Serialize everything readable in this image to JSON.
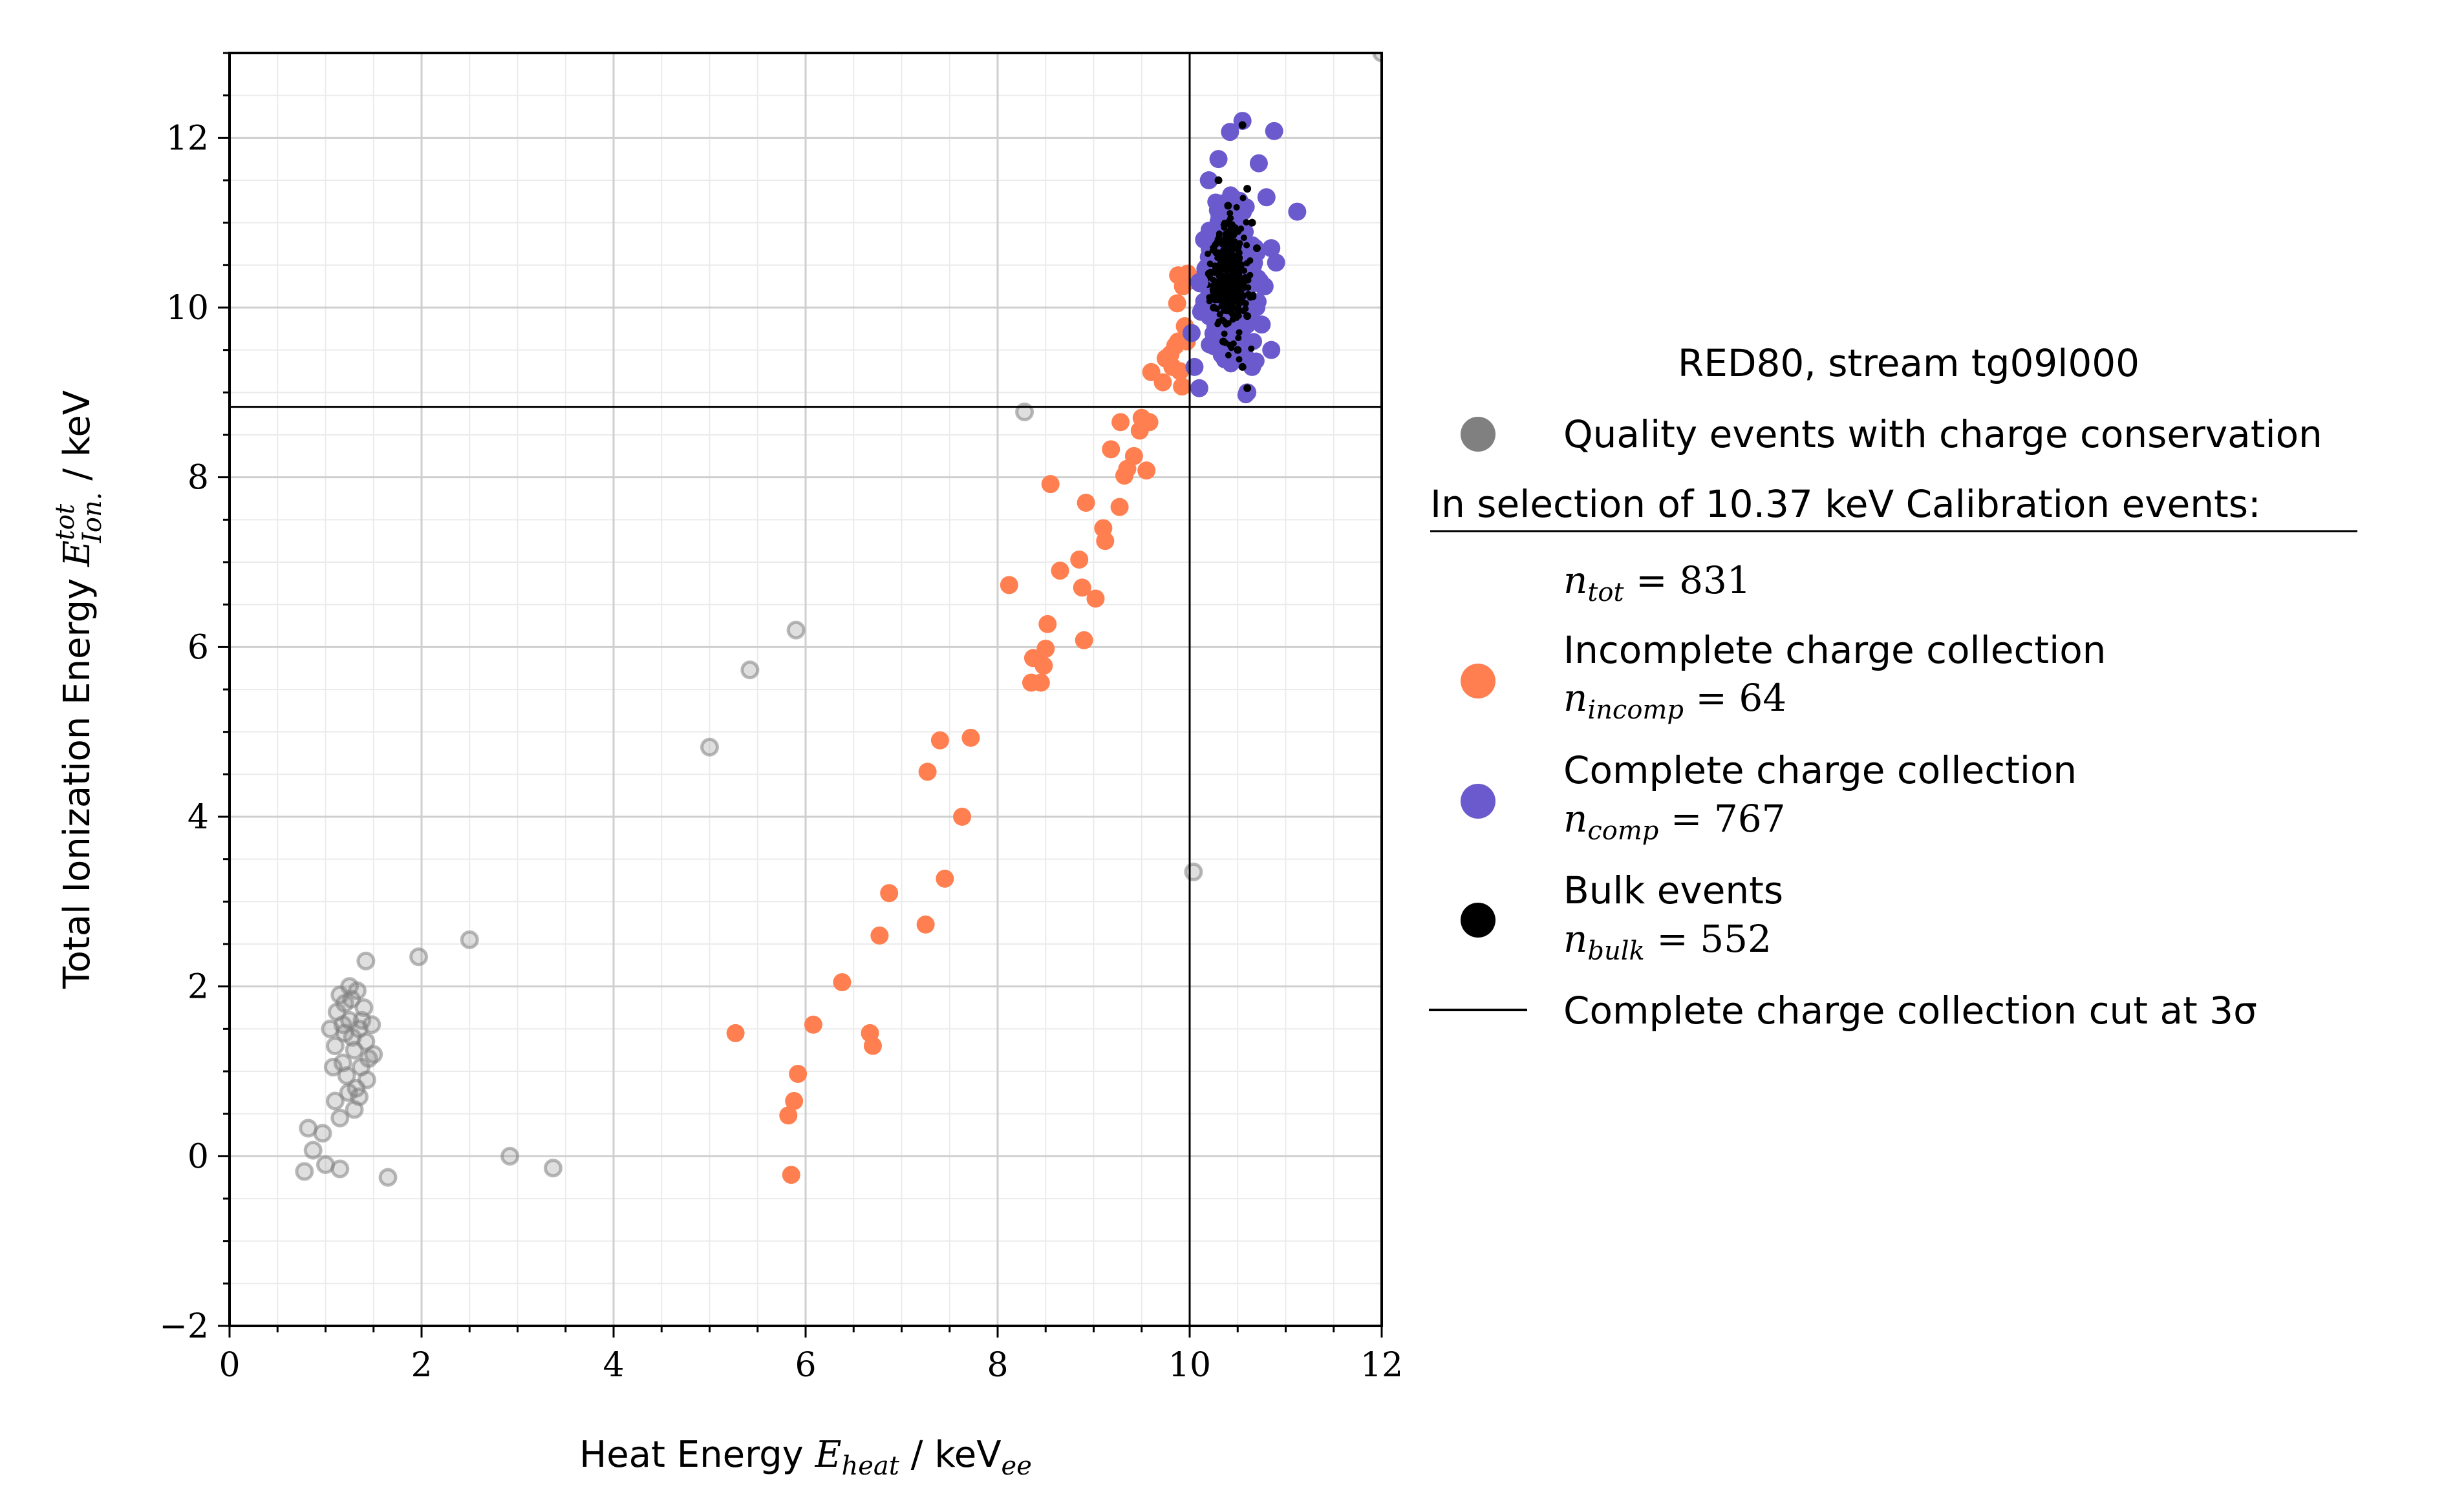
{
  "chart_data": {
    "type": "scatter",
    "title": "",
    "xlabel": {
      "prefix": "Heat Energy ",
      "math": "E",
      "math_sub": "heat",
      "suffix_unit": " / keV",
      "unit_sub": "ee"
    },
    "ylabel": {
      "prefix": "Total Ionization Energy ",
      "math": "E",
      "math_sup": "tot",
      "math_sub": "Ion.",
      "suffix_unit": " / keV"
    },
    "xlim": [
      0,
      12
    ],
    "ylim": [
      -2,
      13
    ],
    "x_ticks": [
      "0",
      "2",
      "4",
      "6",
      "8",
      "10",
      "12"
    ],
    "y_ticks": [
      "−2",
      "0",
      "2",
      "4",
      "6",
      "8",
      "10",
      "12"
    ],
    "x_tick_values": [
      0,
      2,
      4,
      6,
      8,
      10,
      12
    ],
    "y_tick_values": [
      -2,
      0,
      2,
      4,
      6,
      8,
      10,
      12
    ],
    "grid": true,
    "cut_lines": {
      "vertical_x": 10.0,
      "horizontal_y": 8.83
    },
    "legend": {
      "placement": "right",
      "title": "RED80, stream tg09l000",
      "selection_header": "In selection of 10.37 keV Calibration events:",
      "entries": [
        {
          "label": "Quality events with charge conservation",
          "math": "",
          "color": "#808080"
        },
        {
          "label": "",
          "math": "n_tot = 831",
          "color": ""
        },
        {
          "label": "Incomplete charge collection",
          "math": "n_incomp = 64",
          "color": "#ff7f50"
        },
        {
          "label": "Complete charge collection",
          "math": "n_comp = 767",
          "color": "#6a5acd"
        },
        {
          "label": "Bulk events",
          "math": "n_bulk = 552",
          "color": "#000000"
        },
        {
          "label": "Complete charge collection cut at 3σ",
          "math": "",
          "color": "#000000"
        }
      ],
      "math_parts": {
        "tot": {
          "sym": "n",
          "sub": "tot",
          "val": " = 831"
        },
        "incomp": {
          "sym": "n",
          "sub": "incomp",
          "val": " = 64"
        },
        "comp": {
          "sym": "n",
          "sub": "comp",
          "val": " = 767"
        },
        "bulk": {
          "sym": "n",
          "sub": "bulk",
          "val": " = 552"
        }
      }
    },
    "series": [
      {
        "name": "Quality events with charge conservation",
        "color": "#808080",
        "points": [
          [
            0.78,
            -0.18
          ],
          [
            0.82,
            0.33
          ],
          [
            0.87,
            0.07
          ],
          [
            0.97,
            0.27
          ],
          [
            1.0,
            -0.1
          ],
          [
            1.15,
            -0.15
          ],
          [
            1.65,
            -0.25
          ],
          [
            1.05,
            1.5
          ],
          [
            1.1,
            1.3
          ],
          [
            1.12,
            1.7
          ],
          [
            1.15,
            1.9
          ],
          [
            1.18,
            1.1
          ],
          [
            1.2,
            1.45
          ],
          [
            1.22,
            0.95
          ],
          [
            1.25,
            1.6
          ],
          [
            1.27,
            1.85
          ],
          [
            1.3,
            1.25
          ],
          [
            1.32,
            0.8
          ],
          [
            1.35,
            1.5
          ],
          [
            1.37,
            1.05
          ],
          [
            1.4,
            1.75
          ],
          [
            1.42,
            1.35
          ],
          [
            1.45,
            1.15
          ],
          [
            1.48,
            1.55
          ],
          [
            1.5,
            1.2
          ],
          [
            1.1,
            0.65
          ],
          [
            1.15,
            0.45
          ],
          [
            1.3,
            0.55
          ],
          [
            1.25,
            2.0
          ],
          [
            1.35,
            0.7
          ],
          [
            1.2,
            1.8
          ],
          [
            1.28,
            1.4
          ],
          [
            1.38,
            1.6
          ],
          [
            1.18,
            1.55
          ],
          [
            1.33,
            1.95
          ],
          [
            1.43,
            0.9
          ],
          [
            1.08,
            1.05
          ],
          [
            1.24,
            0.75
          ],
          [
            1.42,
            2.3
          ],
          [
            1.97,
            2.35
          ],
          [
            2.5,
            2.55
          ],
          [
            2.92,
            0.0
          ],
          [
            3.37,
            -0.14
          ],
          [
            5.0,
            4.82
          ],
          [
            5.42,
            5.73
          ],
          [
            5.9,
            6.2
          ],
          [
            8.28,
            8.77
          ],
          [
            10.04,
            3.35
          ],
          [
            12.0,
            13.0
          ]
        ]
      },
      {
        "name": "Incomplete charge collection",
        "color": "#ff7f50",
        "points": [
          [
            5.27,
            1.45
          ],
          [
            5.82,
            0.48
          ],
          [
            5.85,
            -0.22
          ],
          [
            5.88,
            0.65
          ],
          [
            5.92,
            0.97
          ],
          [
            6.08,
            1.55
          ],
          [
            6.38,
            2.05
          ],
          [
            6.67,
            1.45
          ],
          [
            6.7,
            1.3
          ],
          [
            6.77,
            2.6
          ],
          [
            6.87,
            3.1
          ],
          [
            7.25,
            2.73
          ],
          [
            7.27,
            4.53
          ],
          [
            7.4,
            4.9
          ],
          [
            7.45,
            3.27
          ],
          [
            7.63,
            4.0
          ],
          [
            7.72,
            4.93
          ],
          [
            8.12,
            6.73
          ],
          [
            8.35,
            5.58
          ],
          [
            8.37,
            5.87
          ],
          [
            8.45,
            5.58
          ],
          [
            8.48,
            5.78
          ],
          [
            8.5,
            5.98
          ],
          [
            8.52,
            6.27
          ],
          [
            8.55,
            7.92
          ],
          [
            8.65,
            6.9
          ],
          [
            8.85,
            7.03
          ],
          [
            8.88,
            6.7
          ],
          [
            8.9,
            6.08
          ],
          [
            8.92,
            7.7
          ],
          [
            9.02,
            6.57
          ],
          [
            9.1,
            7.4
          ],
          [
            9.12,
            7.25
          ],
          [
            9.18,
            8.33
          ],
          [
            9.27,
            7.65
          ],
          [
            9.28,
            8.65
          ],
          [
            9.32,
            8.02
          ],
          [
            9.35,
            8.1
          ],
          [
            9.42,
            8.25
          ],
          [
            9.48,
            8.55
          ],
          [
            9.5,
            8.7
          ],
          [
            9.55,
            8.08
          ],
          [
            9.58,
            8.65
          ],
          [
            9.6,
            9.24
          ],
          [
            9.72,
            9.12
          ],
          [
            9.75,
            9.4
          ],
          [
            9.82,
            9.3
          ],
          [
            9.85,
            9.55
          ],
          [
            9.87,
            10.05
          ],
          [
            9.88,
            10.38
          ],
          [
            9.9,
            9.25
          ],
          [
            9.92,
            9.07
          ],
          [
            9.93,
            10.25
          ],
          [
            9.95,
            9.78
          ],
          [
            9.97,
            9.6
          ],
          [
            9.98,
            10.4
          ],
          [
            9.88,
            9.6
          ],
          [
            9.8,
            9.45
          ]
        ]
      },
      {
        "name": "Complete charge collection",
        "color": "#6a5acd",
        "points": [
          [
            10.42,
            12.07
          ],
          [
            10.55,
            12.2
          ],
          [
            10.88,
            12.08
          ],
          [
            11.12,
            11.13
          ],
          [
            10.9,
            10.53
          ],
          [
            10.65,
            9.3
          ],
          [
            10.6,
            9.0
          ],
          [
            10.1,
            9.05
          ],
          [
            10.05,
            9.3
          ],
          [
            10.02,
            9.7
          ],
          [
            10.85,
            9.5
          ],
          [
            10.3,
            11.75
          ],
          [
            10.72,
            11.7
          ],
          [
            10.2,
            11.5
          ],
          [
            10.8,
            11.3
          ],
          [
            10.15,
            10.8
          ],
          [
            10.85,
            10.7
          ],
          [
            10.1,
            10.3
          ],
          [
            10.78,
            10.25
          ],
          [
            10.12,
            9.95
          ],
          [
            10.75,
            9.8
          ]
        ]
      },
      {
        "name": "Bulk events",
        "color": "#000000",
        "points": [
          [
            10.55,
            12.15
          ],
          [
            10.3,
            11.5
          ],
          [
            10.6,
            11.4
          ],
          [
            10.4,
            11.2
          ],
          [
            10.5,
            10.9
          ],
          [
            10.7,
            10.7
          ],
          [
            10.2,
            10.4
          ],
          [
            10.45,
            10.2
          ],
          [
            10.6,
            9.9
          ],
          [
            10.35,
            9.6
          ],
          [
            10.55,
            9.3
          ],
          [
            10.3,
            10.8
          ],
          [
            10.65,
            11.0
          ],
          [
            10.25,
            10.0
          ],
          [
            10.5,
            9.5
          ],
          [
            10.4,
            10.5
          ],
          [
            10.58,
            10.35
          ],
          [
            10.6,
            9.05
          ]
        ]
      }
    ]
  }
}
